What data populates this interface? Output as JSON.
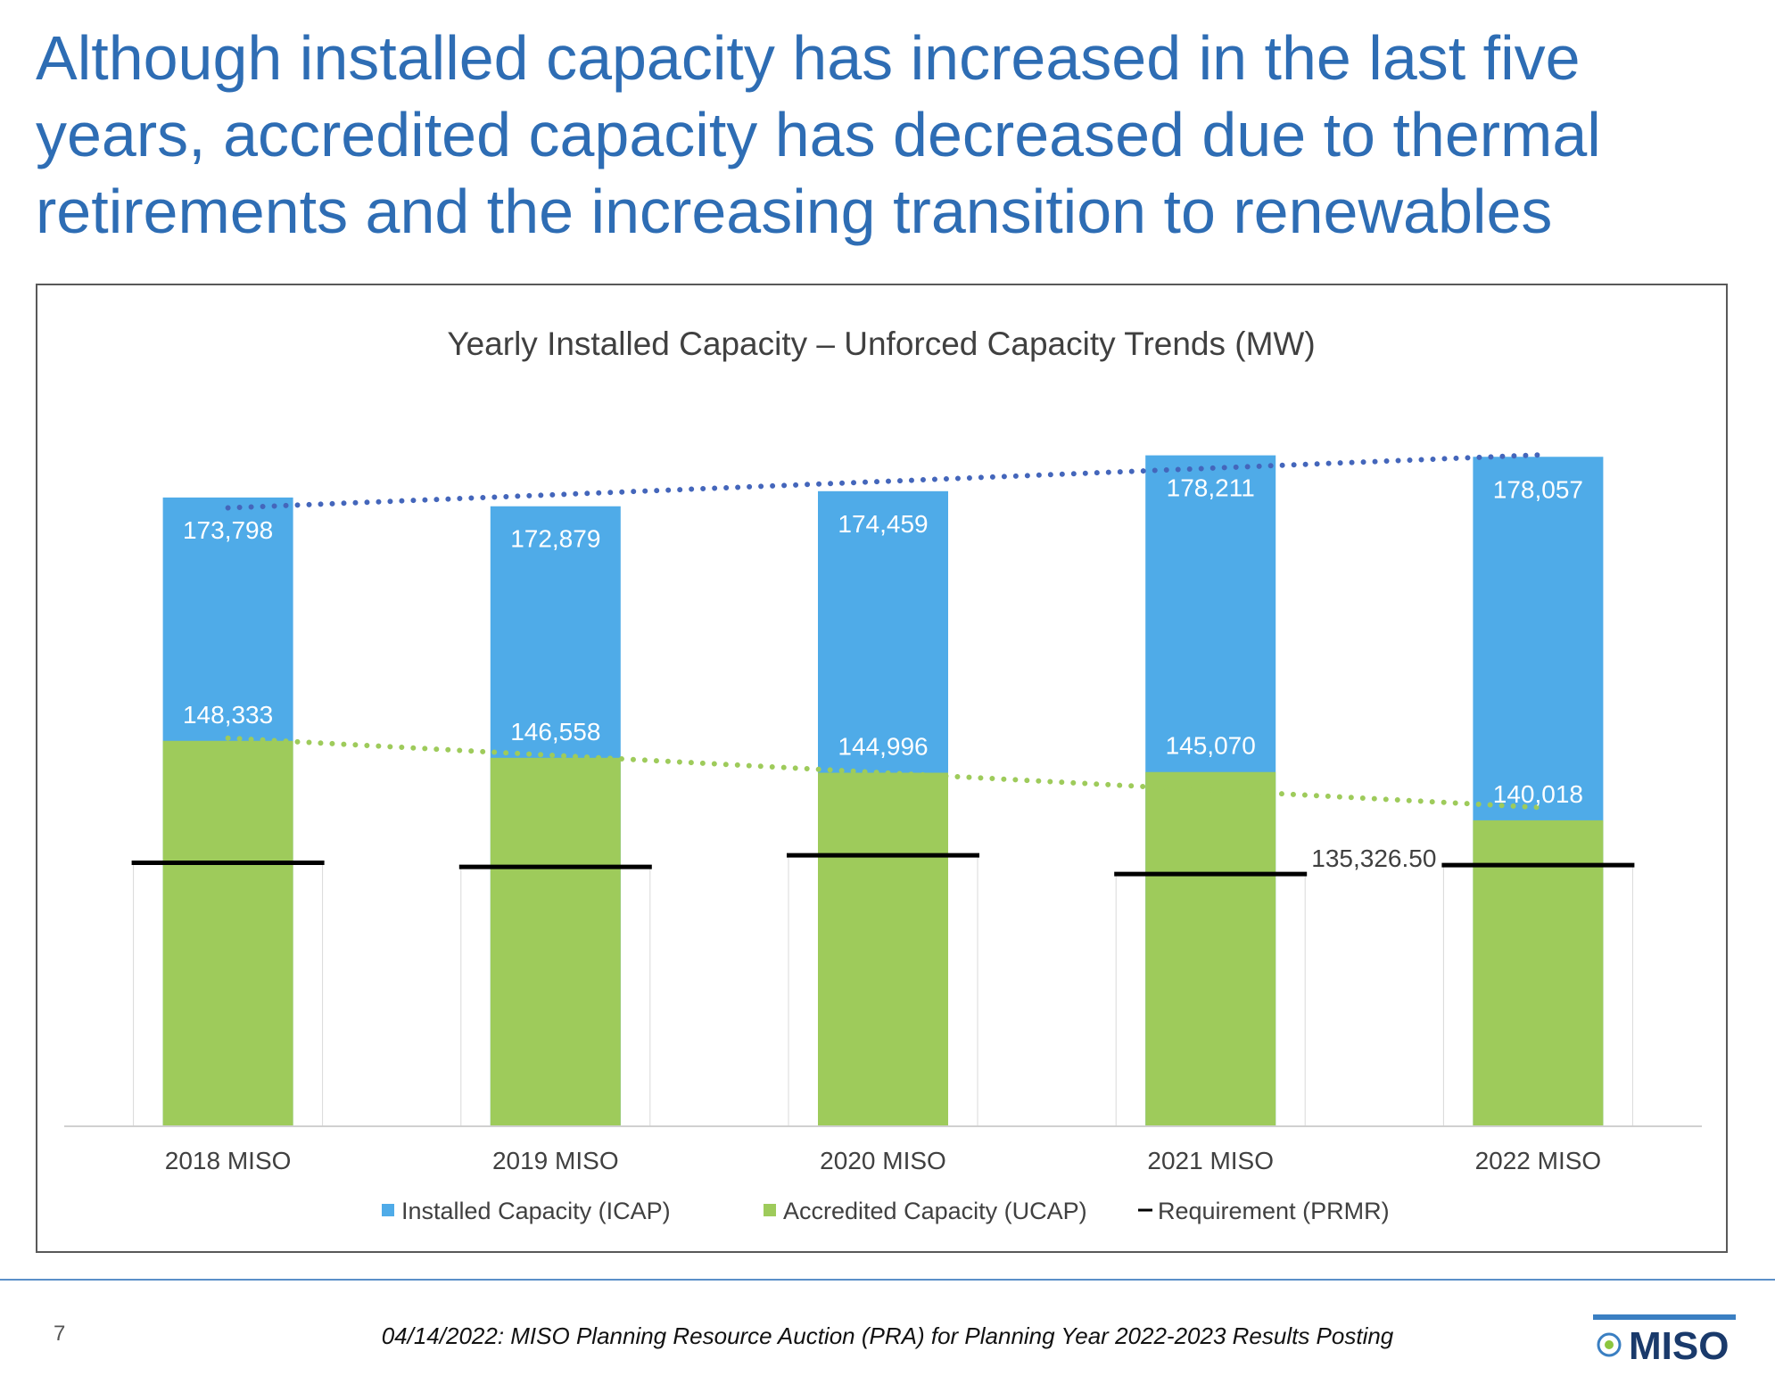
{
  "slide": {
    "title": "Although installed capacity has increased in the last five years, accredited capacity has decreased due to thermal retirements and the increasing transition to renewables",
    "page_number": "7",
    "footer": "04/14/2022:  MISO Planning Resource Auction (PRA) for Planning Year 2022-2023 Results Posting",
    "logo_text": "MISO"
  },
  "chart_data": {
    "type": "bar",
    "title": "Yearly Installed Capacity – Unforced Capacity Trends (MW)",
    "categories": [
      "2018 MISO",
      "2019 MISO",
      "2020 MISO",
      "2021 MISO",
      "2022 MISO"
    ],
    "series": [
      {
        "name": "Installed Capacity (ICAP)",
        "values": [
          173798,
          172879,
          174459,
          178211,
          178057
        ],
        "labels": [
          "173,798",
          "172,879",
          "174,459",
          "178,211",
          "178,057"
        ],
        "color": "#4fabe8"
      },
      {
        "name": "Accredited Capacity (UCAP)",
        "values": [
          148333,
          146558,
          144996,
          145070,
          140018
        ],
        "labels": [
          "148,333",
          "146,558",
          "144,996",
          "145,070",
          "140,018"
        ],
        "color": "#9ecb5b"
      },
      {
        "name": "Requirement (PRMR)",
        "values": [
          135580,
          135140,
          136360,
          134400,
          135326.5
        ],
        "labels": [
          "",
          "",
          "",
          "",
          "135,326.50"
        ],
        "color": "#000000"
      }
    ],
    "trendlines": [
      {
        "series": "Installed Capacity (ICAP)",
        "style": "dotted",
        "color": "#4466bb"
      },
      {
        "series": "Accredited Capacity (UCAP)",
        "style": "dotted",
        "color": "#9ecb5b"
      }
    ],
    "ylim": [
      108000,
      182000
    ],
    "grid": false,
    "legend": "bottom"
  }
}
